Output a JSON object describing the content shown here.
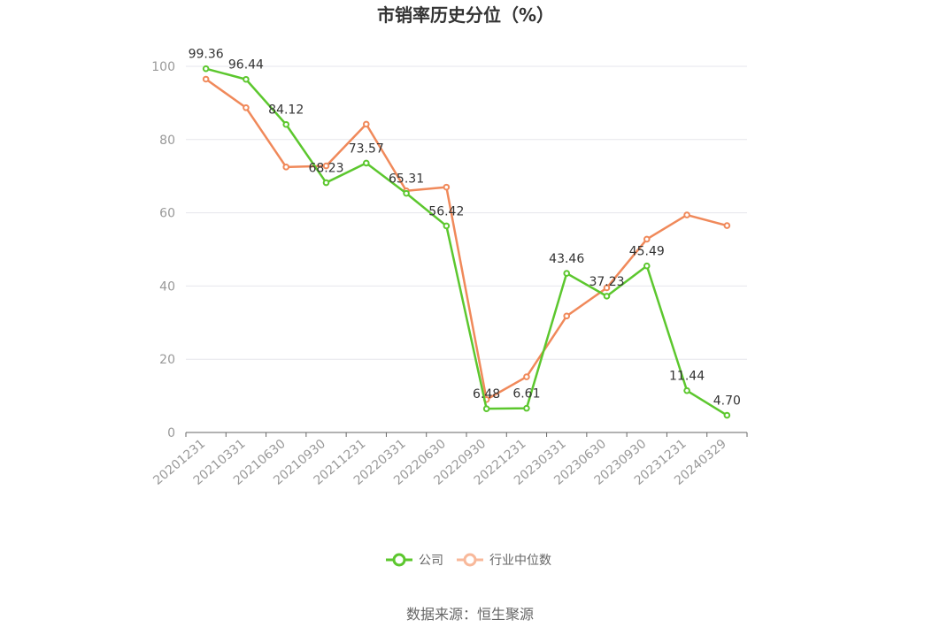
{
  "chart_data": {
    "type": "line",
    "title": "市销率历史分位（%）",
    "categories": [
      "20201231",
      "20210331",
      "20210630",
      "20210930",
      "20211231",
      "20220331",
      "20220630",
      "20220930",
      "20221231",
      "20230331",
      "20230630",
      "20230930",
      "20231231",
      "20240329"
    ],
    "ylim": [
      0,
      100
    ],
    "yticks": [
      0,
      20,
      40,
      60,
      80,
      100
    ],
    "grid": true,
    "legend_position": "bottom",
    "series": [
      {
        "name": "公司",
        "color": "#5cc72e",
        "values": [
          99.36,
          96.44,
          84.12,
          68.23,
          73.57,
          65.31,
          56.42,
          6.48,
          6.61,
          43.46,
          37.23,
          45.49,
          11.44,
          4.7
        ],
        "labels": [
          "99.36",
          "96.44",
          "84.12",
          "68.23",
          "73.57",
          "65.31",
          "56.42",
          "6.48",
          "6.61",
          "43.46",
          "37.23",
          "45.49",
          "11.44",
          "4.70"
        ]
      },
      {
        "name": "行业中位数",
        "color": "#f0895a",
        "values": [
          96.5,
          88.7,
          72.5,
          72.8,
          84.2,
          66.0,
          67.0,
          9.0,
          15.2,
          31.8,
          39.5,
          52.8,
          59.4,
          56.5
        ]
      }
    ],
    "legend_marker_color_company": "#5cc72e",
    "legend_marker_color_industry": "#f8b89a"
  },
  "source": "数据来源：恒生聚源"
}
